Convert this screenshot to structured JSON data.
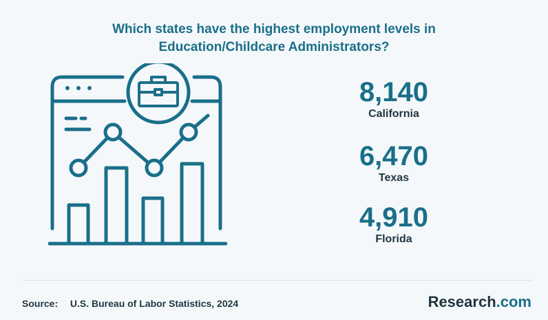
{
  "title": {
    "line1": "Which states have the highest employment levels in",
    "line2": "Education/Childcare Administrators?"
  },
  "stats": [
    {
      "value": "8,140",
      "state": "California"
    },
    {
      "value": "6,470",
      "state": "Texas"
    },
    {
      "value": "4,910",
      "state": "Florida"
    }
  ],
  "footer": {
    "source_label": "Source:",
    "source_text": "U.S. Bureau of Labor Statistics, 2024",
    "brand_name": "Research",
    "brand_tld": ".com"
  },
  "colors": {
    "accent": "#1a6f8a",
    "dark": "#1f3440",
    "background": "#f5f8fa"
  }
}
